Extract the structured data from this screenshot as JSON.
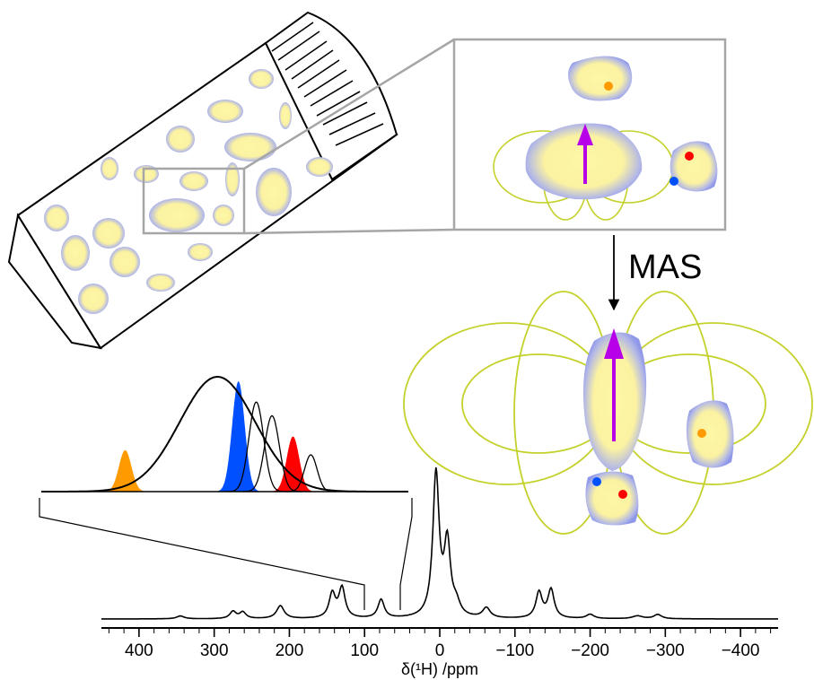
{
  "mas_label": "MAS",
  "colors": {
    "particle_fill": "#fdf7a6",
    "particle_edge": "#8f98e8",
    "field_lines": "#c4d12b",
    "dipole_arrow": "#b800e8",
    "orange_site": "#ff9a00",
    "blue_site": "#0050ff",
    "red_site": "#ff0000",
    "zoom_box": "#a6a6a6"
  },
  "chart_data": {
    "type": "line",
    "xlabel": "δ(¹H) /ppm",
    "xlim": [
      450,
      -450
    ],
    "xticks": [
      400,
      300,
      200,
      100,
      0,
      -100,
      -200,
      -300,
      -400
    ],
    "xtick_labels": [
      "400",
      "300",
      "200",
      "100",
      "0",
      "−100",
      "−200",
      "−300",
      "−400"
    ],
    "peaks": [
      {
        "x": 345,
        "h": 0.02,
        "w": 6
      },
      {
        "x": 275,
        "h": 0.05,
        "w": 5
      },
      {
        "x": 262,
        "h": 0.045,
        "w": 5
      },
      {
        "x": 212,
        "h": 0.09,
        "w": 6
      },
      {
        "x": 143,
        "h": 0.17,
        "w": 5
      },
      {
        "x": 130,
        "h": 0.21,
        "w": 5
      },
      {
        "x": 78,
        "h": 0.13,
        "w": 5
      },
      {
        "x": 5,
        "h": 1.0,
        "w": 5
      },
      {
        "x": -10,
        "h": 0.5,
        "w": 5
      },
      {
        "x": -22,
        "h": 0.08,
        "w": 6
      },
      {
        "x": -62,
        "h": 0.07,
        "w": 6
      },
      {
        "x": -132,
        "h": 0.18,
        "w": 5
      },
      {
        "x": -148,
        "h": 0.2,
        "w": 5
      },
      {
        "x": -200,
        "h": 0.03,
        "w": 6
      },
      {
        "x": -263,
        "h": 0.02,
        "w": 8
      },
      {
        "x": -290,
        "h": 0.03,
        "w": 6
      }
    ],
    "inset": {
      "xlim": [
        450,
        100
      ],
      "envelope": {
        "x": 282,
        "h": 1.0,
        "w": 36
      },
      "components": [
        {
          "color": "orange",
          "x": 370,
          "h": 0.36,
          "w": 6,
          "filled": true
        },
        {
          "color": "blue",
          "x": 262,
          "h": 0.96,
          "w": 6,
          "filled": true
        },
        {
          "color": "none",
          "x": 245,
          "h": 0.78,
          "w": 7,
          "filled": false
        },
        {
          "color": "none",
          "x": 230,
          "h": 0.66,
          "w": 7,
          "filled": false
        },
        {
          "color": "red",
          "x": 210,
          "h": 0.48,
          "w": 6,
          "filled": true
        },
        {
          "color": "none",
          "x": 193,
          "h": 0.32,
          "w": 6,
          "filled": false
        }
      ]
    }
  }
}
